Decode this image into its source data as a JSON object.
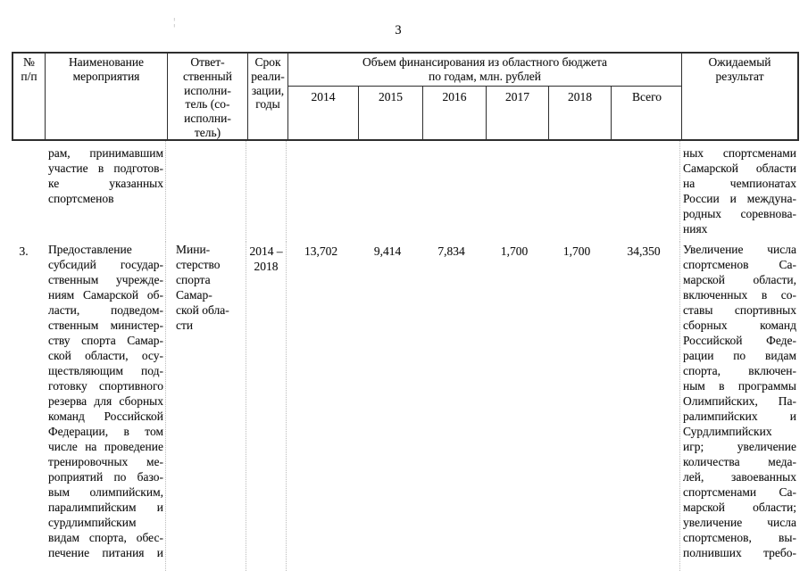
{
  "page": {
    "number": "3"
  },
  "table": {
    "header": {
      "num": "№\nп/п",
      "name": "Наименование\nмероприятия",
      "executor": "Ответ-\nственный\nисполни-\nтель (со-\nисполни-\nтель)",
      "period": "Срок\nреали-\nзации,\nгоды",
      "financing_title": "Объем финансирования из областного бюджета\nпо годам, млн. рублей",
      "years": [
        "2014",
        "2015",
        "2016",
        "2017",
        "2018",
        "Всего"
      ],
      "result": "Ожидаемый\nрезультат"
    },
    "rows": [
      {
        "num": "",
        "name": "рам, принимавшим\nучастие в подготов-\nке указанных\nспортсменов",
        "executor": "",
        "period": "",
        "values": [
          "",
          "",
          "",
          "",
          "",
          ""
        ],
        "result": "ных спортсменами\nСамарской области\nна чемпионатах\nРоссии и междуна-\nродных соревнова-\nниях"
      },
      {
        "num": "3.",
        "name": "Предоставление\nсубсидий государ-\nственным учрежде-\nниям Самарской об-\nласти, подведом-\nственным министер-\nству спорта Самар-\nской области, осу-\nществляющим под-\nготовку спортивного\nрезерва для сборных\nкоманд Российской\nФедерации, в том\nчисле на проведение\nтренировочных ме-\nроприятий по базо-\nвым олимпийским,\nпаралимпийским и\nсурдлимпийским\nвидам спорта, обес-\nпечение питания и",
        "executor": "Мини-\nстерство\nспорта\nСамар-\nской обла-\nсти",
        "period": "2014 –\n2018",
        "values": [
          "13,702",
          "9,414",
          "7,834",
          "1,700",
          "1,700",
          "34,350"
        ],
        "result": "Увеличение числа\nспортсменов Са-\nмарской области,\nвключенных в со-\nставы спортивных\nсборных команд\nРоссийской Феде-\nрации по видам\nспорта, включен-\nным в программы\nОлимпийских, Па-\nралимпийских и\nСурдлимпийских\nигр; увеличение\nколичества меда-\nлей, завоеванных\nспортсменами Са-\nмарской области;\nувеличение числа\nспортсменов, вы-\nполнивших требо-"
      }
    ]
  }
}
